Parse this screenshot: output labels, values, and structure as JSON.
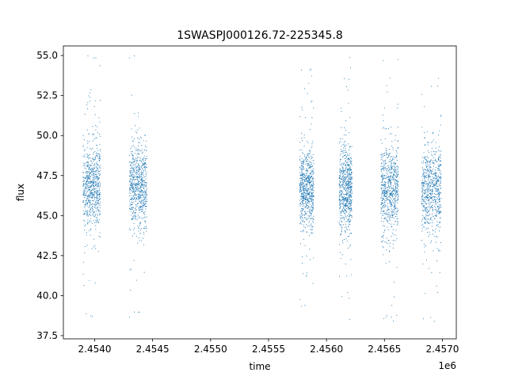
{
  "chart_data": {
    "type": "scatter",
    "title": "1SWASPJ000126.72-225345.8",
    "xlabel": "time",
    "ylabel": "flux",
    "x_offset_label": "1e6",
    "xlim": [
      2453730,
      2457120
    ],
    "ylim": [
      37.3,
      55.6
    ],
    "x_ticks": [
      2.454,
      2.4545,
      2.455,
      2.4555,
      2.456,
      2.4565,
      2.457
    ],
    "x_tick_labels": [
      "2.4540",
      "2.4545",
      "2.4550",
      "2.4555",
      "2.4560",
      "2.4565",
      "2.4570"
    ],
    "y_ticks": [
      37.5,
      40.0,
      42.5,
      45.0,
      47.5,
      50.0,
      52.5,
      55.0
    ],
    "y_tick_labels": [
      "37.5",
      "40.0",
      "42.5",
      "45.0",
      "47.5",
      "50.0",
      "52.5",
      "55.0"
    ],
    "grid": false,
    "marker_color": "#1f77b4",
    "series": [
      {
        "segments": [
          {
            "x_start": 2453900,
            "x_end": 2454050,
            "y_center": 46.8,
            "y_spread": 1.3,
            "y_min": 38.4,
            "y_max": 55.1
          },
          {
            "x_start": 2454300,
            "x_end": 2454450,
            "y_center": 46.9,
            "y_spread": 1.3,
            "y_min": 38.5,
            "y_max": 55.0
          },
          {
            "x_start": 2455770,
            "x_end": 2455890,
            "y_center": 46.7,
            "y_spread": 1.2,
            "y_min": 38.3,
            "y_max": 54.4
          },
          {
            "x_start": 2456110,
            "x_end": 2456220,
            "y_center": 46.7,
            "y_spread": 1.3,
            "y_min": 38.3,
            "y_max": 55.1
          },
          {
            "x_start": 2456470,
            "x_end": 2456620,
            "y_center": 46.7,
            "y_spread": 1.3,
            "y_min": 38.3,
            "y_max": 55.0
          },
          {
            "x_start": 2456820,
            "x_end": 2456990,
            "y_center": 46.6,
            "y_spread": 1.3,
            "y_min": 38.3,
            "y_max": 55.1
          }
        ]
      }
    ]
  }
}
